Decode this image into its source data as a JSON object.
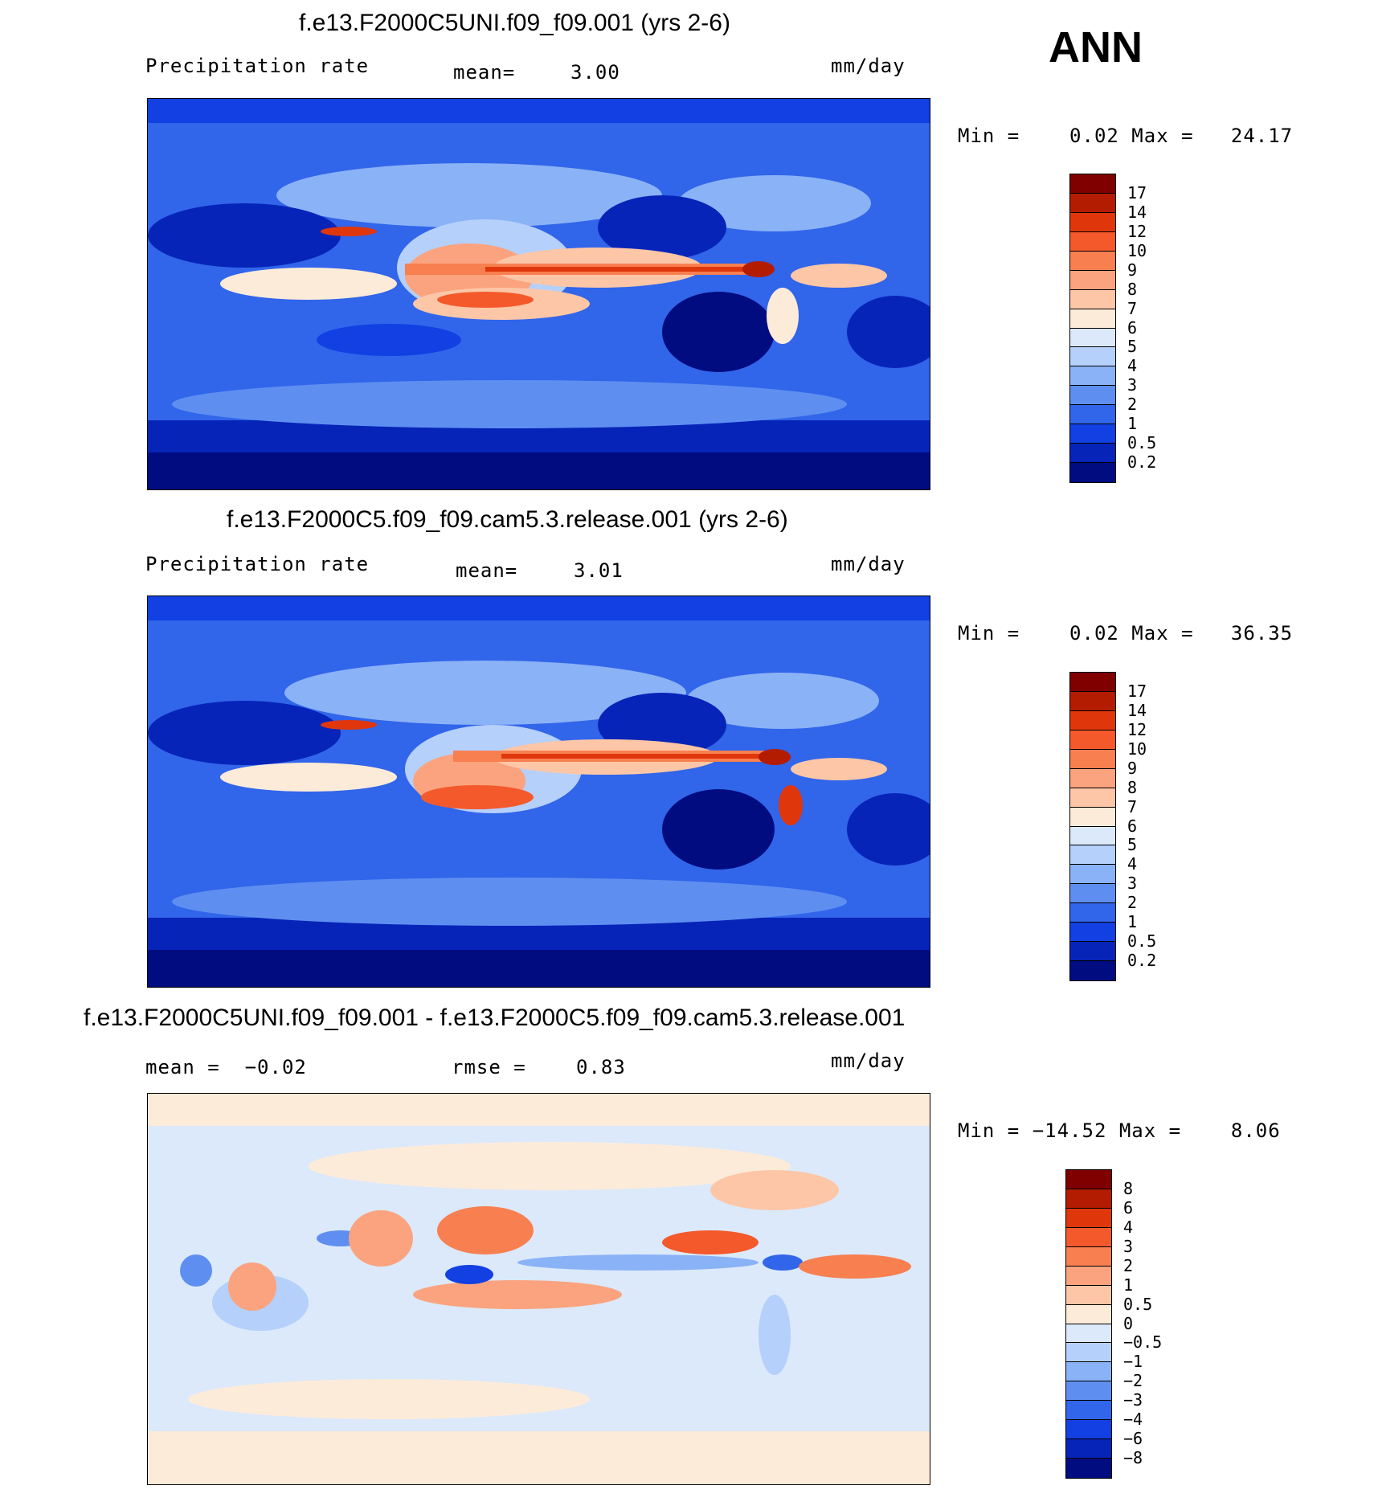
{
  "season": "ANN",
  "panels": [
    {
      "title": "f.e13.F2000C5UNI.f09_f09.001 (yrs 2-6)",
      "left_label": "Precipitation rate",
      "center_label": "mean=",
      "center_value": "3.00",
      "units": "mm/day",
      "minmax_text": "Min =    0.02 Max =   24.17"
    },
    {
      "title": "f.e13.F2000C5.f09_f09.cam5.3.release.001 (yrs 2-6)",
      "left_label": "Precipitation rate",
      "center_label": "mean=",
      "center_value": "3.01",
      "units": "mm/day",
      "minmax_text": "Min =    0.02 Max =   36.35"
    },
    {
      "title": "f.e13.F2000C5UNI.f09_f09.001 - f.e13.F2000C5.f09_f09.cam5.3.release.001",
      "left_label": "mean =  −0.02",
      "center_label": "rmse =",
      "center_value": "0.83",
      "units": "mm/day",
      "minmax_text": "Min = −14.52 Max =    8.06"
    }
  ],
  "colorbars": {
    "precip": {
      "labels": [
        "17",
        "14",
        "12",
        "10",
        "9",
        "8",
        "7",
        "6",
        "5",
        "4",
        "3",
        "2",
        "1",
        "0.5",
        "0.2"
      ],
      "colors": [
        "#800000",
        "#b31c00",
        "#e0360c",
        "#f4592b",
        "#f87f50",
        "#fba37e",
        "#fdc6a7",
        "#fdebd9",
        "#dbe9fb",
        "#b5d0fb",
        "#8ab2f6",
        "#5e8ff0",
        "#3165ea",
        "#1240e2",
        "#0724b8",
        "#000c80"
      ]
    },
    "diff": {
      "labels": [
        "8",
        "6",
        "4",
        "3",
        "2",
        "1",
        "0.5",
        "0",
        "−0.5",
        "−1",
        "−2",
        "−3",
        "−4",
        "−6",
        "−8"
      ],
      "colors": [
        "#800000",
        "#b31c00",
        "#e0360c",
        "#f4592b",
        "#f87f50",
        "#fba37e",
        "#fdc6a7",
        "#fdebd9",
        "#dbe9fb",
        "#b5d0fb",
        "#8ab2f6",
        "#5e8ff0",
        "#3165ea",
        "#1240e2",
        "#0724b8",
        "#000c80"
      ]
    }
  }
}
